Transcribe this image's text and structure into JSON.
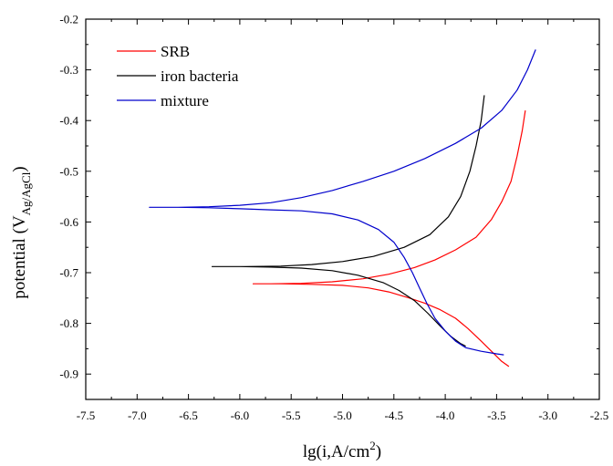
{
  "chart_data": {
    "type": "line",
    "title": "",
    "xlabel": {
      "prefix": "lg(i,A/cm",
      "superscript": "2",
      "suffix": ")"
    },
    "ylabel": {
      "prefix": "potential (V",
      "subscript": "Ag/AgCl",
      "suffix": ")"
    },
    "xlim": [
      -7.5,
      -2.5
    ],
    "ylim": [
      -0.95,
      -0.2
    ],
    "x_reversed": false,
    "y_reversed": false,
    "x_ticks": [
      "-7.5",
      "-7.0",
      "-6.5",
      "-6.0",
      "-5.5",
      "-5.0",
      "-4.5",
      "-4.0",
      "-3.5",
      "-3.0",
      "-2.5"
    ],
    "y_ticks": [
      "-0.2",
      "-0.3",
      "-0.4",
      "-0.5",
      "-0.6",
      "-0.7",
      "-0.8",
      "-0.9"
    ],
    "grid": false,
    "legend_position": "top-left",
    "series": [
      {
        "name": "SRB",
        "color": "#ff0000",
        "points": [
          [
            -3.22,
            -0.38
          ],
          [
            -3.25,
            -0.42
          ],
          [
            -3.3,
            -0.47
          ],
          [
            -3.36,
            -0.52
          ],
          [
            -3.45,
            -0.56
          ],
          [
            -3.55,
            -0.595
          ],
          [
            -3.7,
            -0.63
          ],
          [
            -3.9,
            -0.655
          ],
          [
            -4.1,
            -0.675
          ],
          [
            -4.3,
            -0.69
          ],
          [
            -4.55,
            -0.703
          ],
          [
            -4.8,
            -0.712
          ],
          [
            -5.1,
            -0.718
          ],
          [
            -5.4,
            -0.721
          ],
          [
            -5.7,
            -0.722
          ],
          [
            -5.87,
            -0.722
          ],
          [
            -5.6,
            -0.722
          ],
          [
            -5.3,
            -0.723
          ],
          [
            -5.0,
            -0.725
          ],
          [
            -4.75,
            -0.73
          ],
          [
            -4.55,
            -0.738
          ],
          [
            -4.35,
            -0.75
          ],
          [
            -4.2,
            -0.76
          ],
          [
            -4.05,
            -0.773
          ],
          [
            -3.9,
            -0.79
          ],
          [
            -3.78,
            -0.81
          ],
          [
            -3.65,
            -0.835
          ],
          [
            -3.55,
            -0.855
          ],
          [
            -3.45,
            -0.875
          ],
          [
            -3.38,
            -0.885
          ]
        ]
      },
      {
        "name": "iron bacteria",
        "color": "#000000",
        "points": [
          [
            -3.62,
            -0.35
          ],
          [
            -3.65,
            -0.4
          ],
          [
            -3.7,
            -0.45
          ],
          [
            -3.76,
            -0.5
          ],
          [
            -3.85,
            -0.55
          ],
          [
            -3.97,
            -0.59
          ],
          [
            -4.15,
            -0.625
          ],
          [
            -4.4,
            -0.65
          ],
          [
            -4.7,
            -0.668
          ],
          [
            -5.0,
            -0.678
          ],
          [
            -5.3,
            -0.684
          ],
          [
            -5.6,
            -0.687
          ],
          [
            -5.95,
            -0.688
          ],
          [
            -6.27,
            -0.688
          ],
          [
            -6.0,
            -0.688
          ],
          [
            -5.7,
            -0.689
          ],
          [
            -5.4,
            -0.691
          ],
          [
            -5.1,
            -0.696
          ],
          [
            -4.85,
            -0.705
          ],
          [
            -4.6,
            -0.72
          ],
          [
            -4.45,
            -0.735
          ],
          [
            -4.3,
            -0.755
          ],
          [
            -4.17,
            -0.78
          ],
          [
            -4.05,
            -0.805
          ],
          [
            -3.95,
            -0.825
          ],
          [
            -3.85,
            -0.84
          ],
          [
            -3.8,
            -0.845
          ]
        ]
      },
      {
        "name": "mixture",
        "color": "#0000cc",
        "points": [
          [
            -3.12,
            -0.26
          ],
          [
            -3.2,
            -0.3
          ],
          [
            -3.3,
            -0.34
          ],
          [
            -3.45,
            -0.38
          ],
          [
            -3.65,
            -0.415
          ],
          [
            -3.9,
            -0.445
          ],
          [
            -4.2,
            -0.475
          ],
          [
            -4.5,
            -0.5
          ],
          [
            -4.8,
            -0.52
          ],
          [
            -5.1,
            -0.538
          ],
          [
            -5.4,
            -0.552
          ],
          [
            -5.7,
            -0.562
          ],
          [
            -6.0,
            -0.567
          ],
          [
            -6.3,
            -0.57
          ],
          [
            -6.6,
            -0.571
          ],
          [
            -6.88,
            -0.571
          ],
          [
            -6.6,
            -0.571
          ],
          [
            -6.3,
            -0.572
          ],
          [
            -6.0,
            -0.574
          ],
          [
            -5.7,
            -0.576
          ],
          [
            -5.4,
            -0.578
          ],
          [
            -5.1,
            -0.584
          ],
          [
            -4.85,
            -0.596
          ],
          [
            -4.65,
            -0.615
          ],
          [
            -4.5,
            -0.64
          ],
          [
            -4.4,
            -0.67
          ],
          [
            -4.32,
            -0.7
          ],
          [
            -4.25,
            -0.73
          ],
          [
            -4.18,
            -0.76
          ],
          [
            -4.1,
            -0.79
          ],
          [
            -4.0,
            -0.815
          ],
          [
            -3.9,
            -0.835
          ],
          [
            -3.8,
            -0.848
          ],
          [
            -3.65,
            -0.855
          ],
          [
            -3.5,
            -0.86
          ],
          [
            -3.43,
            -0.862
          ]
        ]
      }
    ]
  }
}
